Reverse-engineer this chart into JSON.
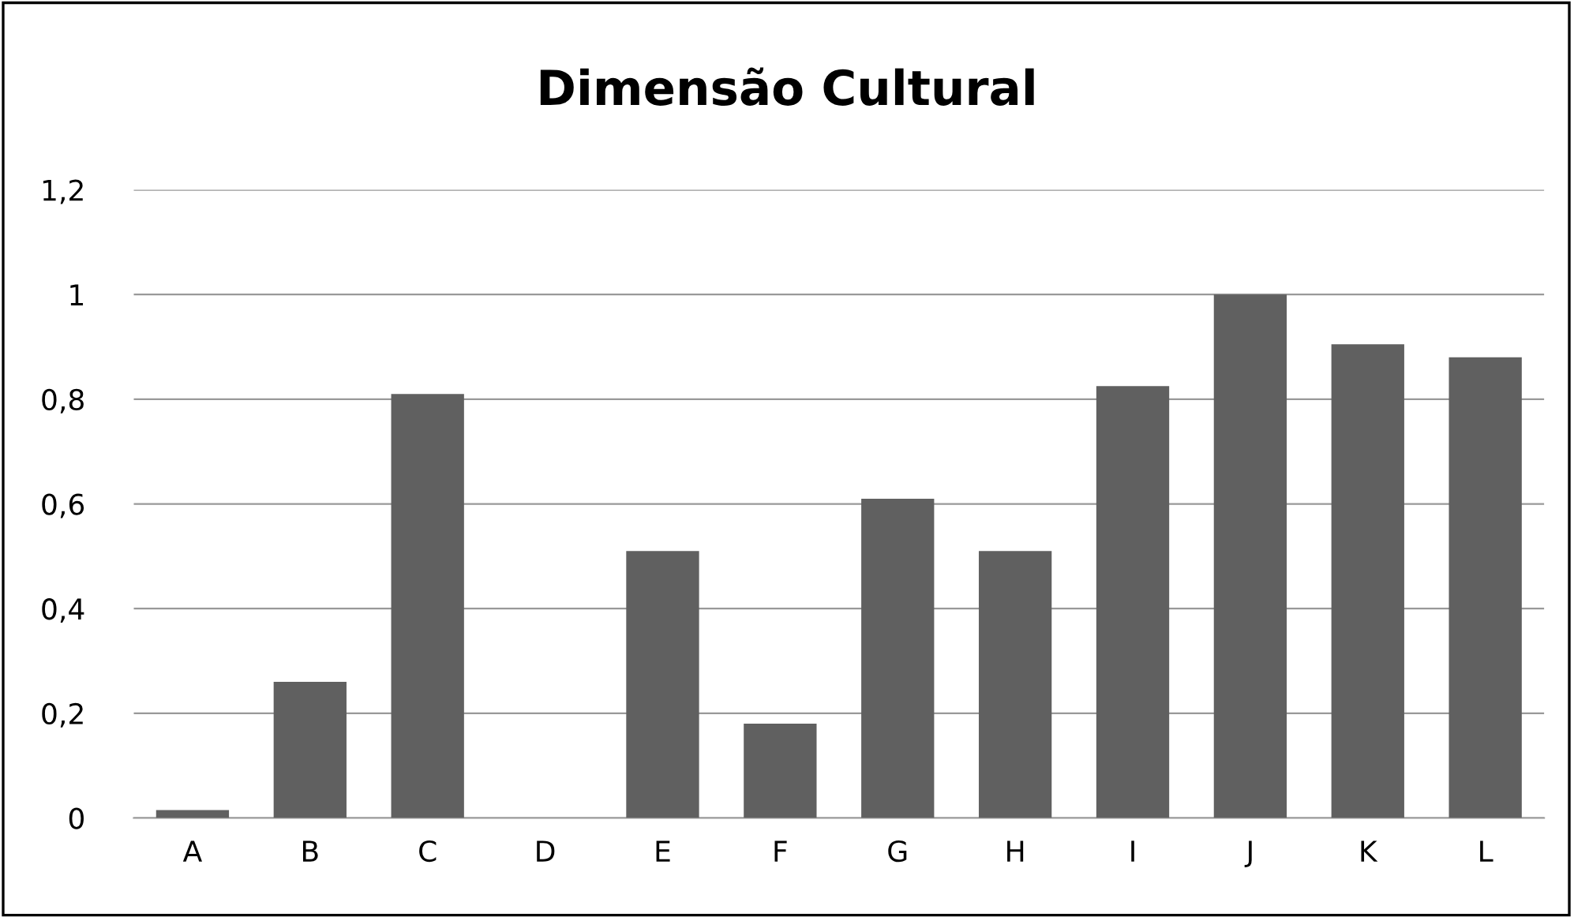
{
  "chart_data": {
    "type": "bar",
    "title": "Dimensão Cultural",
    "categories": [
      "A",
      "B",
      "C",
      "D",
      "E",
      "F",
      "G",
      "H",
      "I",
      "J",
      "K",
      "L"
    ],
    "values": [
      0.015,
      0.26,
      0.81,
      0,
      0.51,
      0.18,
      0.61,
      0.51,
      0.825,
      1.0,
      0.905,
      0.88
    ],
    "color": "#606060",
    "ylim": [
      0,
      1.2
    ],
    "yticks": [
      0,
      {
        "value": 0.2,
        "label": "0,2"
      },
      {
        "value": 0.4,
        "label": "0,4"
      },
      {
        "value": 0.6,
        "label": "0,6"
      },
      {
        "value": 0.8,
        "label": "0,8"
      },
      1,
      {
        "value": 1.2,
        "label": "1,2"
      }
    ],
    "grid": "y",
    "legend": false
  }
}
